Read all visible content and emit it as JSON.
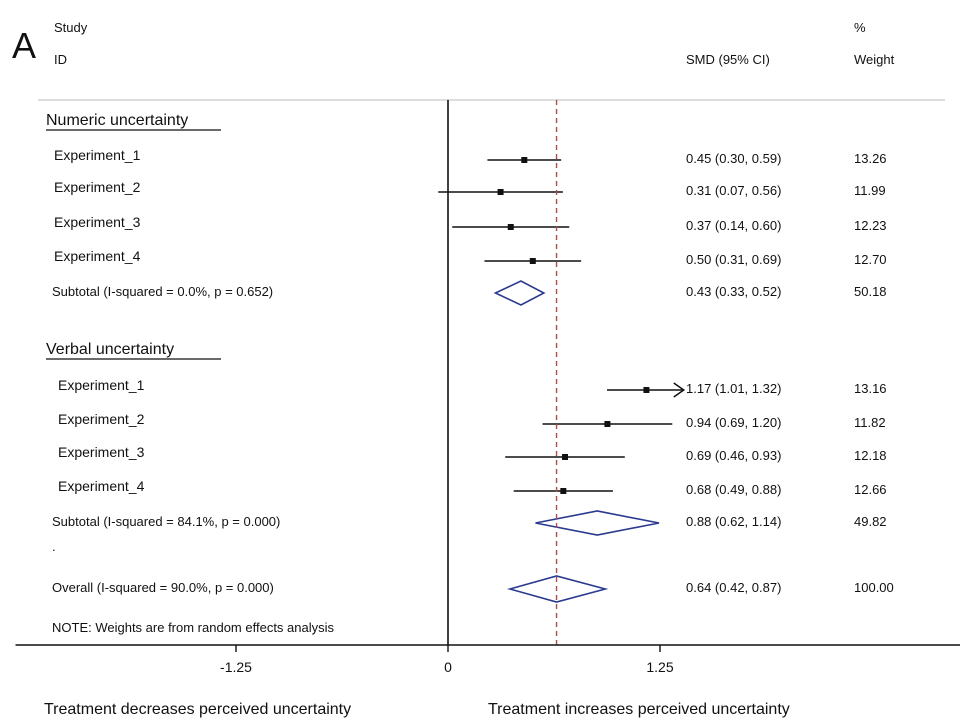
{
  "chart_data": {
    "type": "forest",
    "panel_label": "A",
    "headers": {
      "study_line1": "Study",
      "study_line2": "ID",
      "smd": "SMD (95% CI)",
      "weight_line1": "%",
      "weight_line2": "Weight"
    },
    "null_line": 0,
    "overall_line": 0.64,
    "x_ticks": [
      -1.25,
      0,
      1.25
    ],
    "x_tick_labels": [
      "-1.25",
      "0",
      "1.25"
    ],
    "xlim": [
      -2.55,
      3.05
    ],
    "groups": [
      {
        "label": "Numeric uncertainty",
        "studies": [
          {
            "name": "Experiment_1",
            "smd": 0.45,
            "lo": 0.3,
            "hi": 0.59,
            "ci_text": "0.45 (0.30, 0.59)",
            "weight": "13.26"
          },
          {
            "name": "Experiment_2",
            "smd": 0.31,
            "lo": 0.07,
            "hi": 0.56,
            "ci_text": "0.31 (0.07, 0.56)",
            "weight": "11.99"
          },
          {
            "name": "Experiment_3",
            "smd": 0.37,
            "lo": 0.14,
            "hi": 0.6,
            "ci_text": "0.37 (0.14, 0.60)",
            "weight": "12.23"
          },
          {
            "name": "Experiment_4",
            "smd": 0.5,
            "lo": 0.31,
            "hi": 0.69,
            "ci_text": "0.50 (0.31, 0.69)",
            "weight": "12.70"
          }
        ],
        "subtotal": {
          "label": "Subtotal  (I-squared = 0.0%, p = 0.652)",
          "smd": 0.43,
          "lo": 0.33,
          "hi": 0.52,
          "ci_text": "0.43 (0.33, 0.52)",
          "weight": "50.18"
        }
      },
      {
        "label": "Verbal uncertainty",
        "studies": [
          {
            "name": "Experiment_1",
            "smd": 1.17,
            "lo": 1.01,
            "hi": 1.32,
            "ci_text": "1.17 (1.01, 1.32)",
            "weight": "13.16",
            "arrow": true
          },
          {
            "name": "Experiment_2",
            "smd": 0.94,
            "lo": 0.69,
            "hi": 1.2,
            "ci_text": "0.94 (0.69, 1.20)",
            "weight": "11.82"
          },
          {
            "name": "Experiment_3",
            "smd": 0.69,
            "lo": 0.46,
            "hi": 0.93,
            "ci_text": "0.69 (0.46, 0.93)",
            "weight": "12.18"
          },
          {
            "name": "Experiment_4",
            "smd": 0.68,
            "lo": 0.49,
            "hi": 0.88,
            "ci_text": "0.68 (0.49, 0.88)",
            "weight": "12.66"
          }
        ],
        "subtotal": {
          "label": "Subtotal  (I-squared = 84.1%, p = 0.000)",
          "smd": 0.88,
          "lo": 0.62,
          "hi": 1.14,
          "ci_text": "0.88 (0.62, 1.14)",
          "weight": "49.82"
        }
      }
    ],
    "separator_dot": ".",
    "overall": {
      "label": "Overall  (I-squared = 90.0%, p = 0.000)",
      "smd": 0.64,
      "lo": 0.42,
      "hi": 0.87,
      "ci_text": "0.64 (0.42, 0.87)",
      "weight": "100.00"
    },
    "note": "NOTE: Weights are from random effects analysis",
    "bottom_left_label": "Treatment decreases perceived uncertainty",
    "bottom_right_label": "Treatment increases perceived uncertainty"
  },
  "colors": {
    "diamond": "#2a3a8f",
    "overall_line": "#b34a4a",
    "line": "#111111",
    "header_rule": "#dddddd"
  }
}
